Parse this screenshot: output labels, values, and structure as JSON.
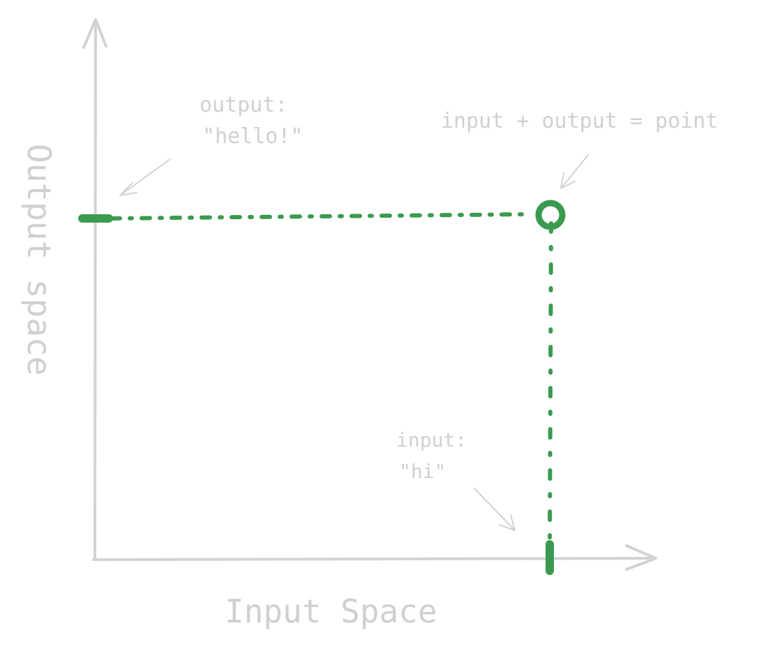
{
  "colors": {
    "axis": "#d3d3d3",
    "text": "#cfcfcf",
    "highlight": "#3a9b4f"
  },
  "axes": {
    "x_label": "Input Space",
    "y_label": "Output space"
  },
  "annotations": {
    "output_line1": "output:",
    "output_line2": "\"hello!\"",
    "point": "input + output = point",
    "input_line1": "input:",
    "input_line2": "\"hi\""
  }
}
